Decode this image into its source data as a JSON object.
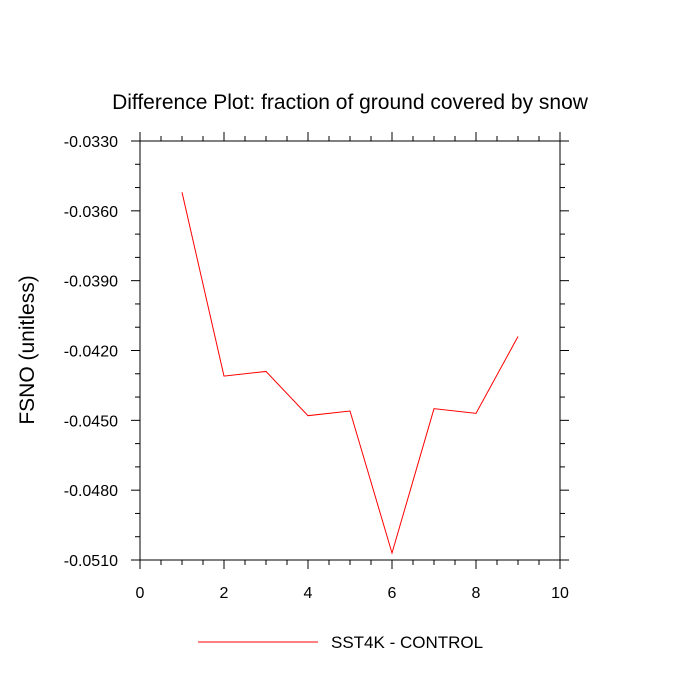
{
  "chart_data": {
    "type": "line",
    "title": "Difference Plot: fraction of ground covered by snow",
    "xlabel": "",
    "ylabel": "FSNO  (unitless)",
    "xlim": [
      0,
      10
    ],
    "ylim": [
      -0.051,
      -0.033
    ],
    "x_ticks": [
      0,
      2,
      4,
      6,
      8,
      10
    ],
    "x_tick_labels": [
      "0",
      "2",
      "4",
      "6",
      "8",
      "10"
    ],
    "y_ticks": [
      -0.051,
      -0.048,
      -0.045,
      -0.042,
      -0.039,
      -0.036,
      -0.033
    ],
    "y_tick_labels": [
      "-0.0510",
      "-0.0480",
      "-0.0450",
      "-0.0420",
      "-0.0390",
      "-0.0360",
      "-0.0330"
    ],
    "grid": false,
    "legend_position": "bottom",
    "series": [
      {
        "name": "SST4K - CONTROL",
        "color": "#ff0000",
        "x": [
          1,
          2,
          3,
          4,
          5,
          6,
          7,
          8,
          9
        ],
        "values": [
          -0.0352,
          -0.0431,
          -0.0429,
          -0.0448,
          -0.0446,
          -0.0507,
          -0.0445,
          -0.0447,
          -0.0414
        ]
      }
    ]
  }
}
